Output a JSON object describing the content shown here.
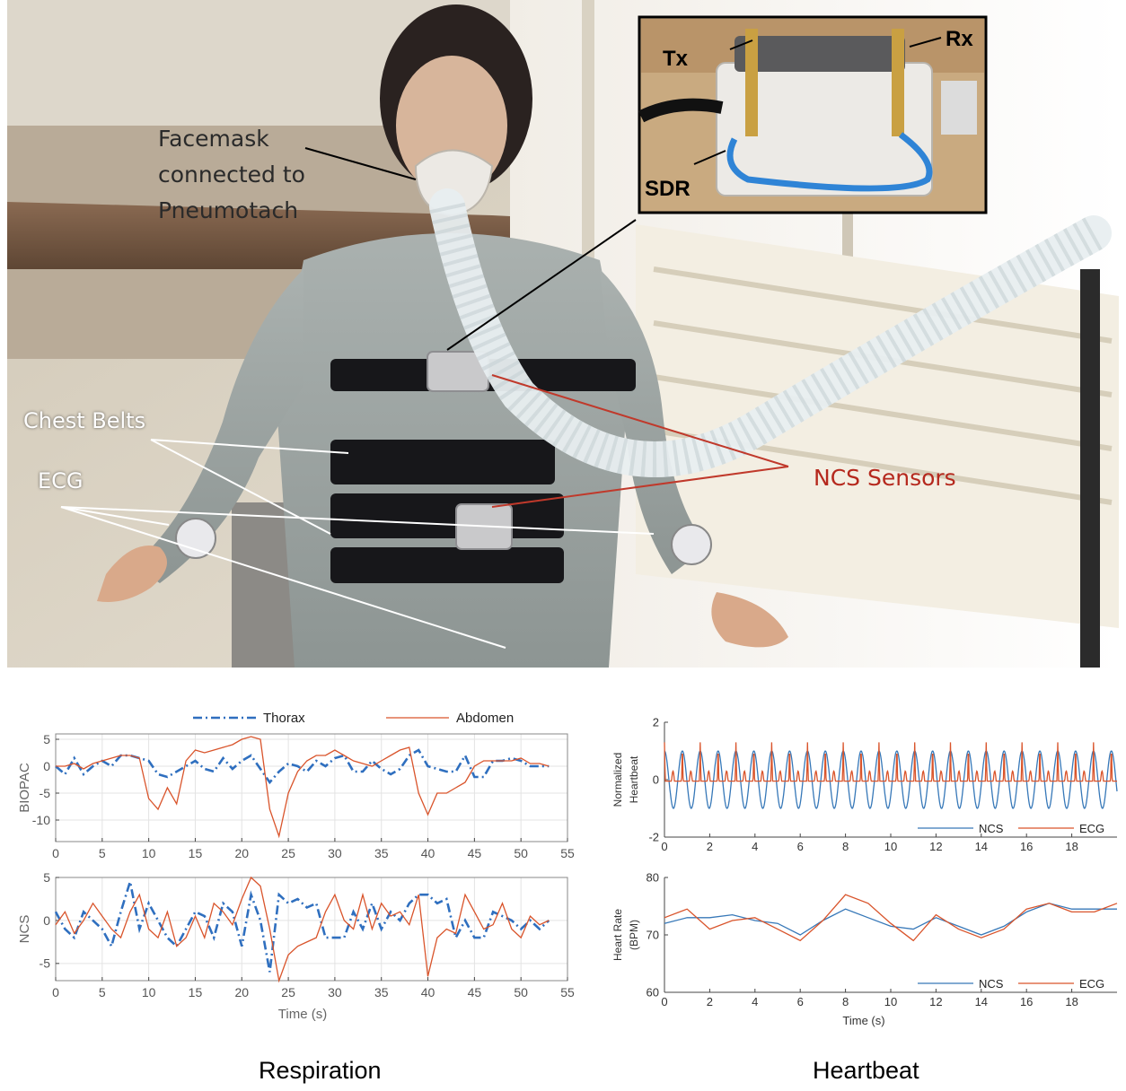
{
  "photo": {
    "labels": {
      "facemask": [
        "Facemask",
        "connected to",
        "Pneumotach"
      ],
      "chest_belts": "Chest Belts",
      "ecg": "ECG",
      "ncs_sensors": "NCS Sensors",
      "tx": "Tx",
      "rx": "Rx",
      "sdr": "SDR"
    },
    "colors": {
      "label_red": "#b5281d",
      "arrow_red": "#c0392b",
      "arrow_white": "#ffffff",
      "arrow_black": "#000000"
    }
  },
  "captions": {
    "respiration": "Respiration",
    "heartbeat": "Heartbeat"
  },
  "chart_data": [
    {
      "type": "line",
      "ylabel": "BIOPAC",
      "xlim": [
        0,
        55
      ],
      "ylim": [
        -14,
        6
      ],
      "xticks": [
        0,
        5,
        10,
        15,
        20,
        25,
        30,
        35,
        40,
        45,
        50,
        55
      ],
      "yticks": [
        5,
        0,
        -5,
        -10
      ],
      "grid": true,
      "legend": {
        "placement": "top",
        "entries": [
          "Thorax",
          "Abdomen"
        ]
      },
      "series": [
        {
          "name": "Thorax",
          "color": "#2f6fbf",
          "style": "dash-dot",
          "x": [
            0,
            1,
            2,
            3,
            4,
            5,
            6,
            7,
            8,
            9,
            10,
            11,
            12,
            13,
            14,
            15,
            16,
            17,
            18,
            19,
            20,
            21,
            22,
            23,
            24,
            25,
            26,
            27,
            28,
            29,
            30,
            31,
            32,
            33,
            34,
            35,
            36,
            37,
            38,
            39,
            40,
            41,
            42,
            43,
            44,
            45,
            46,
            47,
            48,
            49,
            50,
            51,
            52,
            53
          ],
          "y": [
            0,
            -1.5,
            1.5,
            -1.5,
            0,
            1,
            0,
            2,
            2,
            1.5,
            1,
            -1.5,
            -2,
            -1,
            0,
            1,
            -0.5,
            -1,
            1.5,
            -0.5,
            1,
            2,
            -0.5,
            -3,
            -1,
            0.5,
            0,
            -1,
            1,
            0,
            1.5,
            2,
            -1,
            -1,
            1,
            -0.5,
            -1.5,
            -0.5,
            2,
            3,
            0,
            -0.5,
            -1,
            -1,
            2,
            -2,
            -2,
            1,
            1,
            1.5,
            1,
            0,
            0,
            0
          ]
        },
        {
          "name": "Abdomen",
          "color": "#d9542b",
          "style": "solid",
          "x": [
            0,
            1,
            2,
            3,
            4,
            5,
            6,
            7,
            8,
            9,
            10,
            11,
            12,
            13,
            14,
            15,
            16,
            17,
            18,
            19,
            20,
            21,
            22,
            23,
            24,
            25,
            26,
            27,
            28,
            29,
            30,
            31,
            32,
            33,
            34,
            35,
            36,
            37,
            38,
            39,
            40,
            41,
            42,
            43,
            44,
            45,
            46,
            47,
            48,
            49,
            50,
            51,
            52,
            53
          ],
          "y": [
            0,
            0,
            0.5,
            -0.5,
            0.5,
            1,
            1.5,
            2,
            2,
            1.5,
            -6,
            -8,
            -4,
            -7,
            1,
            3,
            2.5,
            3,
            3.5,
            4,
            5,
            5.5,
            5,
            -8,
            -13,
            -5,
            -1,
            1,
            2,
            2,
            3,
            2,
            1,
            0.5,
            0,
            1,
            2,
            3,
            3.5,
            -5,
            -9,
            -5,
            -5,
            -4,
            -3,
            0,
            1,
            1,
            1,
            1,
            1.5,
            0.5,
            0.5,
            0
          ]
        }
      ]
    },
    {
      "type": "line",
      "ylabel": "NCS",
      "xlabel": "Time (s)",
      "xlim": [
        0,
        55
      ],
      "ylim": [
        -7,
        5
      ],
      "xticks": [
        0,
        5,
        10,
        15,
        20,
        25,
        30,
        35,
        40,
        45,
        50,
        55
      ],
      "yticks": [
        5,
        0,
        -5
      ],
      "grid": true,
      "series": [
        {
          "name": "Thorax",
          "color": "#2f6fbf",
          "style": "dash-dot",
          "x": [
            0,
            1,
            2,
            3,
            4,
            5,
            6,
            7,
            8,
            9,
            10,
            11,
            12,
            13,
            14,
            15,
            16,
            17,
            18,
            19,
            20,
            21,
            22,
            23,
            24,
            25,
            26,
            27,
            28,
            29,
            30,
            31,
            32,
            33,
            34,
            35,
            36,
            37,
            38,
            39,
            40,
            41,
            42,
            43,
            44,
            45,
            46,
            47,
            48,
            49,
            50,
            51,
            52,
            53
          ],
          "y": [
            1,
            -1,
            -2,
            1,
            0,
            -1,
            -3,
            1,
            4.5,
            -1,
            2,
            0,
            -2,
            -3,
            -1,
            1,
            0.5,
            -2,
            2,
            1,
            -3,
            3,
            0,
            -6,
            3,
            2,
            2.5,
            1.5,
            2,
            -2,
            -2,
            -2,
            1,
            -1,
            2,
            -1,
            1,
            0,
            2,
            3,
            3,
            2,
            2.5,
            -2,
            0,
            -2,
            -2,
            1,
            0.5,
            0,
            -1,
            0,
            -1,
            0
          ]
        },
        {
          "name": "Abdomen",
          "color": "#d9542b",
          "style": "solid",
          "x": [
            0,
            1,
            2,
            3,
            4,
            5,
            6,
            7,
            8,
            9,
            10,
            11,
            12,
            13,
            14,
            15,
            16,
            17,
            18,
            19,
            20,
            21,
            22,
            23,
            24,
            25,
            26,
            27,
            28,
            29,
            30,
            31,
            32,
            33,
            34,
            35,
            36,
            37,
            38,
            39,
            40,
            41,
            42,
            43,
            44,
            45,
            46,
            47,
            48,
            49,
            50,
            51,
            52,
            53
          ],
          "y": [
            -0.5,
            1,
            -1.5,
            0,
            2,
            0.5,
            -1,
            -2,
            1,
            3,
            -1,
            -2,
            1,
            -3,
            -2,
            0.5,
            -2,
            2,
            1,
            -0.5,
            2.5,
            5,
            4,
            -1,
            -7,
            -4,
            -3,
            -2.5,
            -2,
            1,
            3,
            0,
            -1,
            3,
            -1,
            2,
            0.5,
            1,
            -0.5,
            3,
            -6.5,
            -2,
            -1,
            -1.5,
            3,
            1,
            -1,
            -0.5,
            2,
            -1,
            -2,
            0.5,
            -0.5,
            0
          ]
        }
      ]
    },
    {
      "type": "line",
      "ylabel": "Normalized Heartbeat",
      "xlim": [
        0,
        20
      ],
      "ylim": [
        -2,
        2
      ],
      "xticks": [
        0,
        2,
        4,
        6,
        8,
        10,
        12,
        14,
        16,
        18
      ],
      "yticks": [
        2,
        0,
        -2
      ],
      "grid": false,
      "legend": {
        "placement": "bottom-right",
        "entries": [
          "NCS",
          "ECG"
        ]
      },
      "series": [
        {
          "name": "NCS",
          "color": "#3778b8",
          "kind": "periodic",
          "period_s": 0.79,
          "amplitude": 1.0
        },
        {
          "name": "ECG",
          "color": "#d9542b",
          "kind": "periodic-spike",
          "period_s": 0.79,
          "peak": 1.3,
          "t_wave": 0.3
        }
      ]
    },
    {
      "type": "line",
      "ylabel": "Heart Rate (BPM)",
      "xlabel": "Time (s)",
      "xlim": [
        0,
        20
      ],
      "ylim": [
        60,
        80
      ],
      "xticks": [
        0,
        2,
        4,
        6,
        8,
        10,
        12,
        14,
        16,
        18
      ],
      "yticks": [
        80,
        70,
        60
      ],
      "grid": false,
      "legend": {
        "placement": "bottom-right",
        "entries": [
          "NCS",
          "ECG"
        ]
      },
      "series": [
        {
          "name": "NCS",
          "color": "#3778b8",
          "x": [
            0,
            1,
            2,
            3,
            4,
            5,
            6,
            7,
            8,
            9,
            10,
            11,
            12,
            13,
            14,
            15,
            16,
            17,
            18,
            19,
            20
          ],
          "y": [
            72,
            73,
            73,
            73.5,
            72.5,
            72,
            70,
            72.5,
            74.5,
            73,
            71.5,
            71,
            73,
            71.5,
            70,
            71.5,
            74,
            75.5,
            74.5,
            74.5,
            74.5
          ]
        },
        {
          "name": "ECG",
          "color": "#d9542b",
          "x": [
            0,
            1,
            2,
            3,
            4,
            5,
            6,
            7,
            8,
            9,
            10,
            11,
            12,
            13,
            14,
            15,
            16,
            17,
            18,
            19,
            20
          ],
          "y": [
            73,
            74.5,
            71,
            72.5,
            73,
            71,
            69,
            72.5,
            77,
            75.5,
            72,
            69,
            73.5,
            71,
            69.5,
            71,
            74.5,
            75.5,
            74,
            74,
            75.5
          ]
        }
      ]
    }
  ]
}
